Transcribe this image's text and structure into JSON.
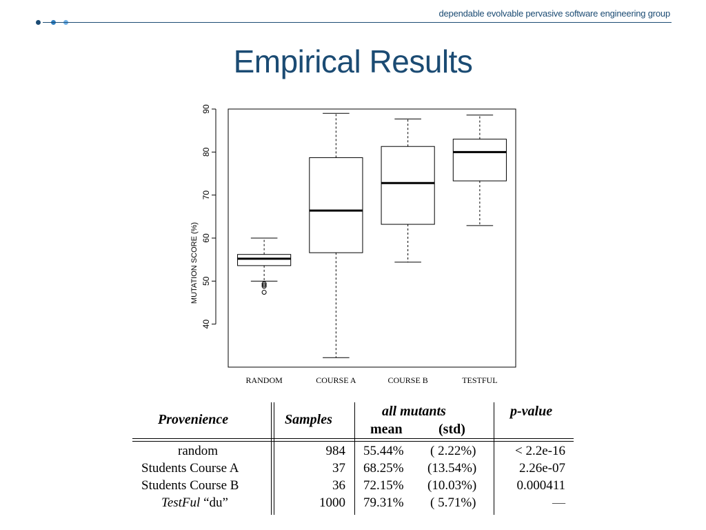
{
  "header": {
    "group_name": "dependable evolvable pervasive software engineering group",
    "dot_colors": [
      "#1b4b73",
      "#2f7fc0",
      "#6fb0e6"
    ]
  },
  "slide": {
    "title": "Empirical Results"
  },
  "chart_data": {
    "type": "boxplot",
    "ylabel": "MUTATION SCORE (%)",
    "ylim": [
      30,
      90
    ],
    "yticks": [
      40,
      50,
      60,
      70,
      80,
      90
    ],
    "categories": [
      "RANDOM",
      "COURSE A",
      "COURSE B",
      "TESTFUL"
    ],
    "boxes": [
      {
        "min": 50,
        "q1": 53.6,
        "median": 55.2,
        "q3": 56.2,
        "max": 60,
        "outliers": [
          49.4,
          49.1,
          48.8,
          47.4
        ]
      },
      {
        "min": 32.2,
        "q1": 56.6,
        "median": 66.4,
        "q3": 78.7,
        "max": 89.0
      },
      {
        "min": 54.4,
        "q1": 63.2,
        "median": 72.8,
        "q3": 81.3,
        "max": 87.7
      },
      {
        "min": 62.9,
        "q1": 73.3,
        "median": 80.0,
        "q3": 83.0,
        "max": 88.6
      }
    ],
    "grid": false,
    "line_color": "#000000"
  },
  "table": {
    "headers": {
      "provenience": "Provenience",
      "samples": "Samples",
      "all_mutants": "all mutants",
      "mean": "mean",
      "std": "(std)",
      "pvalue": "p-value"
    },
    "rows": [
      {
        "provenience": "random",
        "samples": "984",
        "mean": "55.44%",
        "std": "( 2.22%)",
        "pvalue": "< 2.2e-16"
      },
      {
        "provenience": "Students Course A",
        "samples": "37",
        "mean": "68.25%",
        "std": "(13.54%)",
        "pvalue": "2.26e-07"
      },
      {
        "provenience": "Students Course B",
        "samples": "36",
        "mean": "72.15%",
        "std": "(10.03%)",
        "pvalue": "0.000411"
      },
      {
        "provenience_italic": "TestFul",
        "provenience": "“du”",
        "samples": "1000",
        "mean": "79.31%",
        "std": "( 5.71%)",
        "pvalue": "—"
      }
    ]
  }
}
